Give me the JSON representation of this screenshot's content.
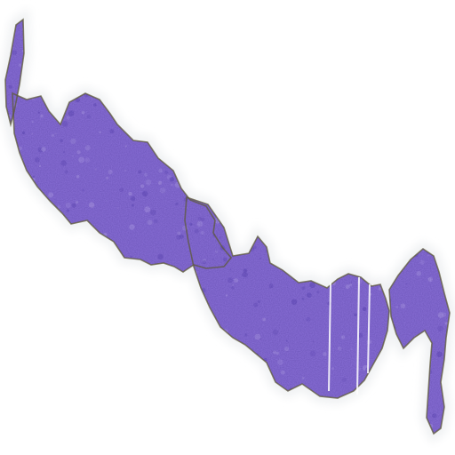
{
  "image": {
    "subject": "histology-tissue-section",
    "background_color": "#ffffff",
    "tissue_color": "#8a70d8",
    "tissue_dark_color": "#6f57c4",
    "tissue_light_color": "#a893e6",
    "edge_color": "#5e5a3a",
    "halo_color": "#eef0f2"
  }
}
